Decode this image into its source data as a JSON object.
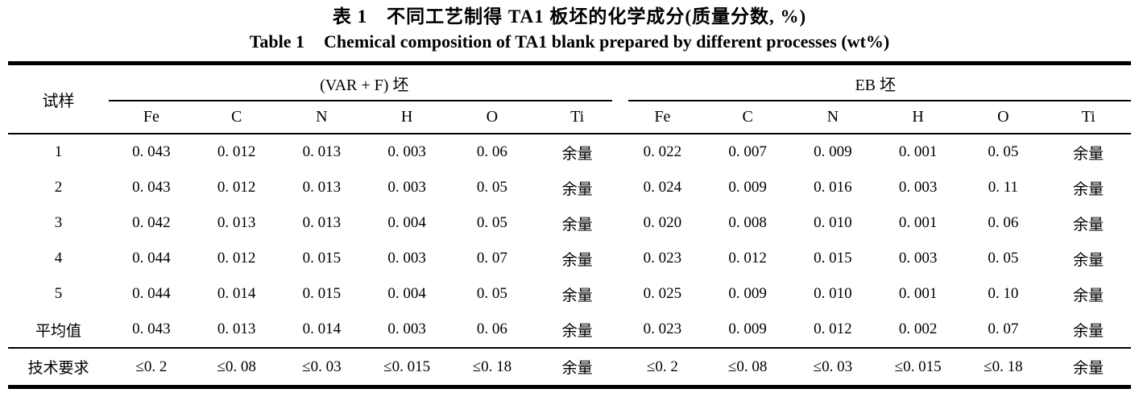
{
  "title": {
    "zh_label": "表 1",
    "zh_text": "不同工艺制得 TA1 板坯的化学成分(质量分数, %)",
    "en_label": "Table 1",
    "en_text": "Chemical composition of TA1 blank prepared by different processes (wt%)"
  },
  "table": {
    "sample_header": "试样",
    "groups": [
      {
        "id": "var-f",
        "label": "(VAR + F) 坯",
        "elements": [
          "Fe",
          "C",
          "N",
          "H",
          "O",
          "Ti"
        ]
      },
      {
        "id": "eb",
        "label": "EB 坯",
        "elements": [
          "Fe",
          "C",
          "N",
          "H",
          "O",
          "Ti"
        ]
      }
    ],
    "rows": [
      {
        "sample": "1",
        "var_f": [
          "0. 043",
          "0. 012",
          "0. 013",
          "0. 003",
          "0. 06",
          "余量"
        ],
        "eb": [
          "0. 022",
          "0. 007",
          "0. 009",
          "0. 001",
          "0. 05",
          "余量"
        ]
      },
      {
        "sample": "2",
        "var_f": [
          "0. 043",
          "0. 012",
          "0. 013",
          "0. 003",
          "0. 05",
          "余量"
        ],
        "eb": [
          "0. 024",
          "0. 009",
          "0. 016",
          "0. 003",
          "0. 11",
          "余量"
        ]
      },
      {
        "sample": "3",
        "var_f": [
          "0. 042",
          "0. 013",
          "0. 013",
          "0. 004",
          "0. 05",
          "余量"
        ],
        "eb": [
          "0. 020",
          "0. 008",
          "0. 010",
          "0. 001",
          "0. 06",
          "余量"
        ]
      },
      {
        "sample": "4",
        "var_f": [
          "0. 044",
          "0. 012",
          "0. 015",
          "0. 003",
          "0. 07",
          "余量"
        ],
        "eb": [
          "0. 023",
          "0. 012",
          "0. 015",
          "0. 003",
          "0. 05",
          "余量"
        ]
      },
      {
        "sample": "5",
        "var_f": [
          "0. 044",
          "0. 014",
          "0. 015",
          "0. 004",
          "0. 05",
          "余量"
        ],
        "eb": [
          "0. 025",
          "0. 009",
          "0. 010",
          "0. 001",
          "0. 10",
          "余量"
        ]
      },
      {
        "sample": "平均值",
        "var_f": [
          "0. 043",
          "0. 013",
          "0. 014",
          "0. 003",
          "0. 06",
          "余量"
        ],
        "eb": [
          "0. 023",
          "0. 009",
          "0. 012",
          "0. 002",
          "0. 07",
          "余量"
        ]
      }
    ],
    "requirement": {
      "sample": "技术要求",
      "var_f": [
        "≤0. 2",
        "≤0. 08",
        "≤0. 03",
        "≤0. 015",
        "≤0. 18",
        "余量"
      ],
      "eb": [
        "≤0. 2",
        "≤0. 08",
        "≤0. 03",
        "≤0. 015",
        "≤0. 18",
        "余量"
      ]
    }
  },
  "colors": {
    "text": "#000000",
    "background": "#ffffff",
    "rule": "#000000"
  }
}
